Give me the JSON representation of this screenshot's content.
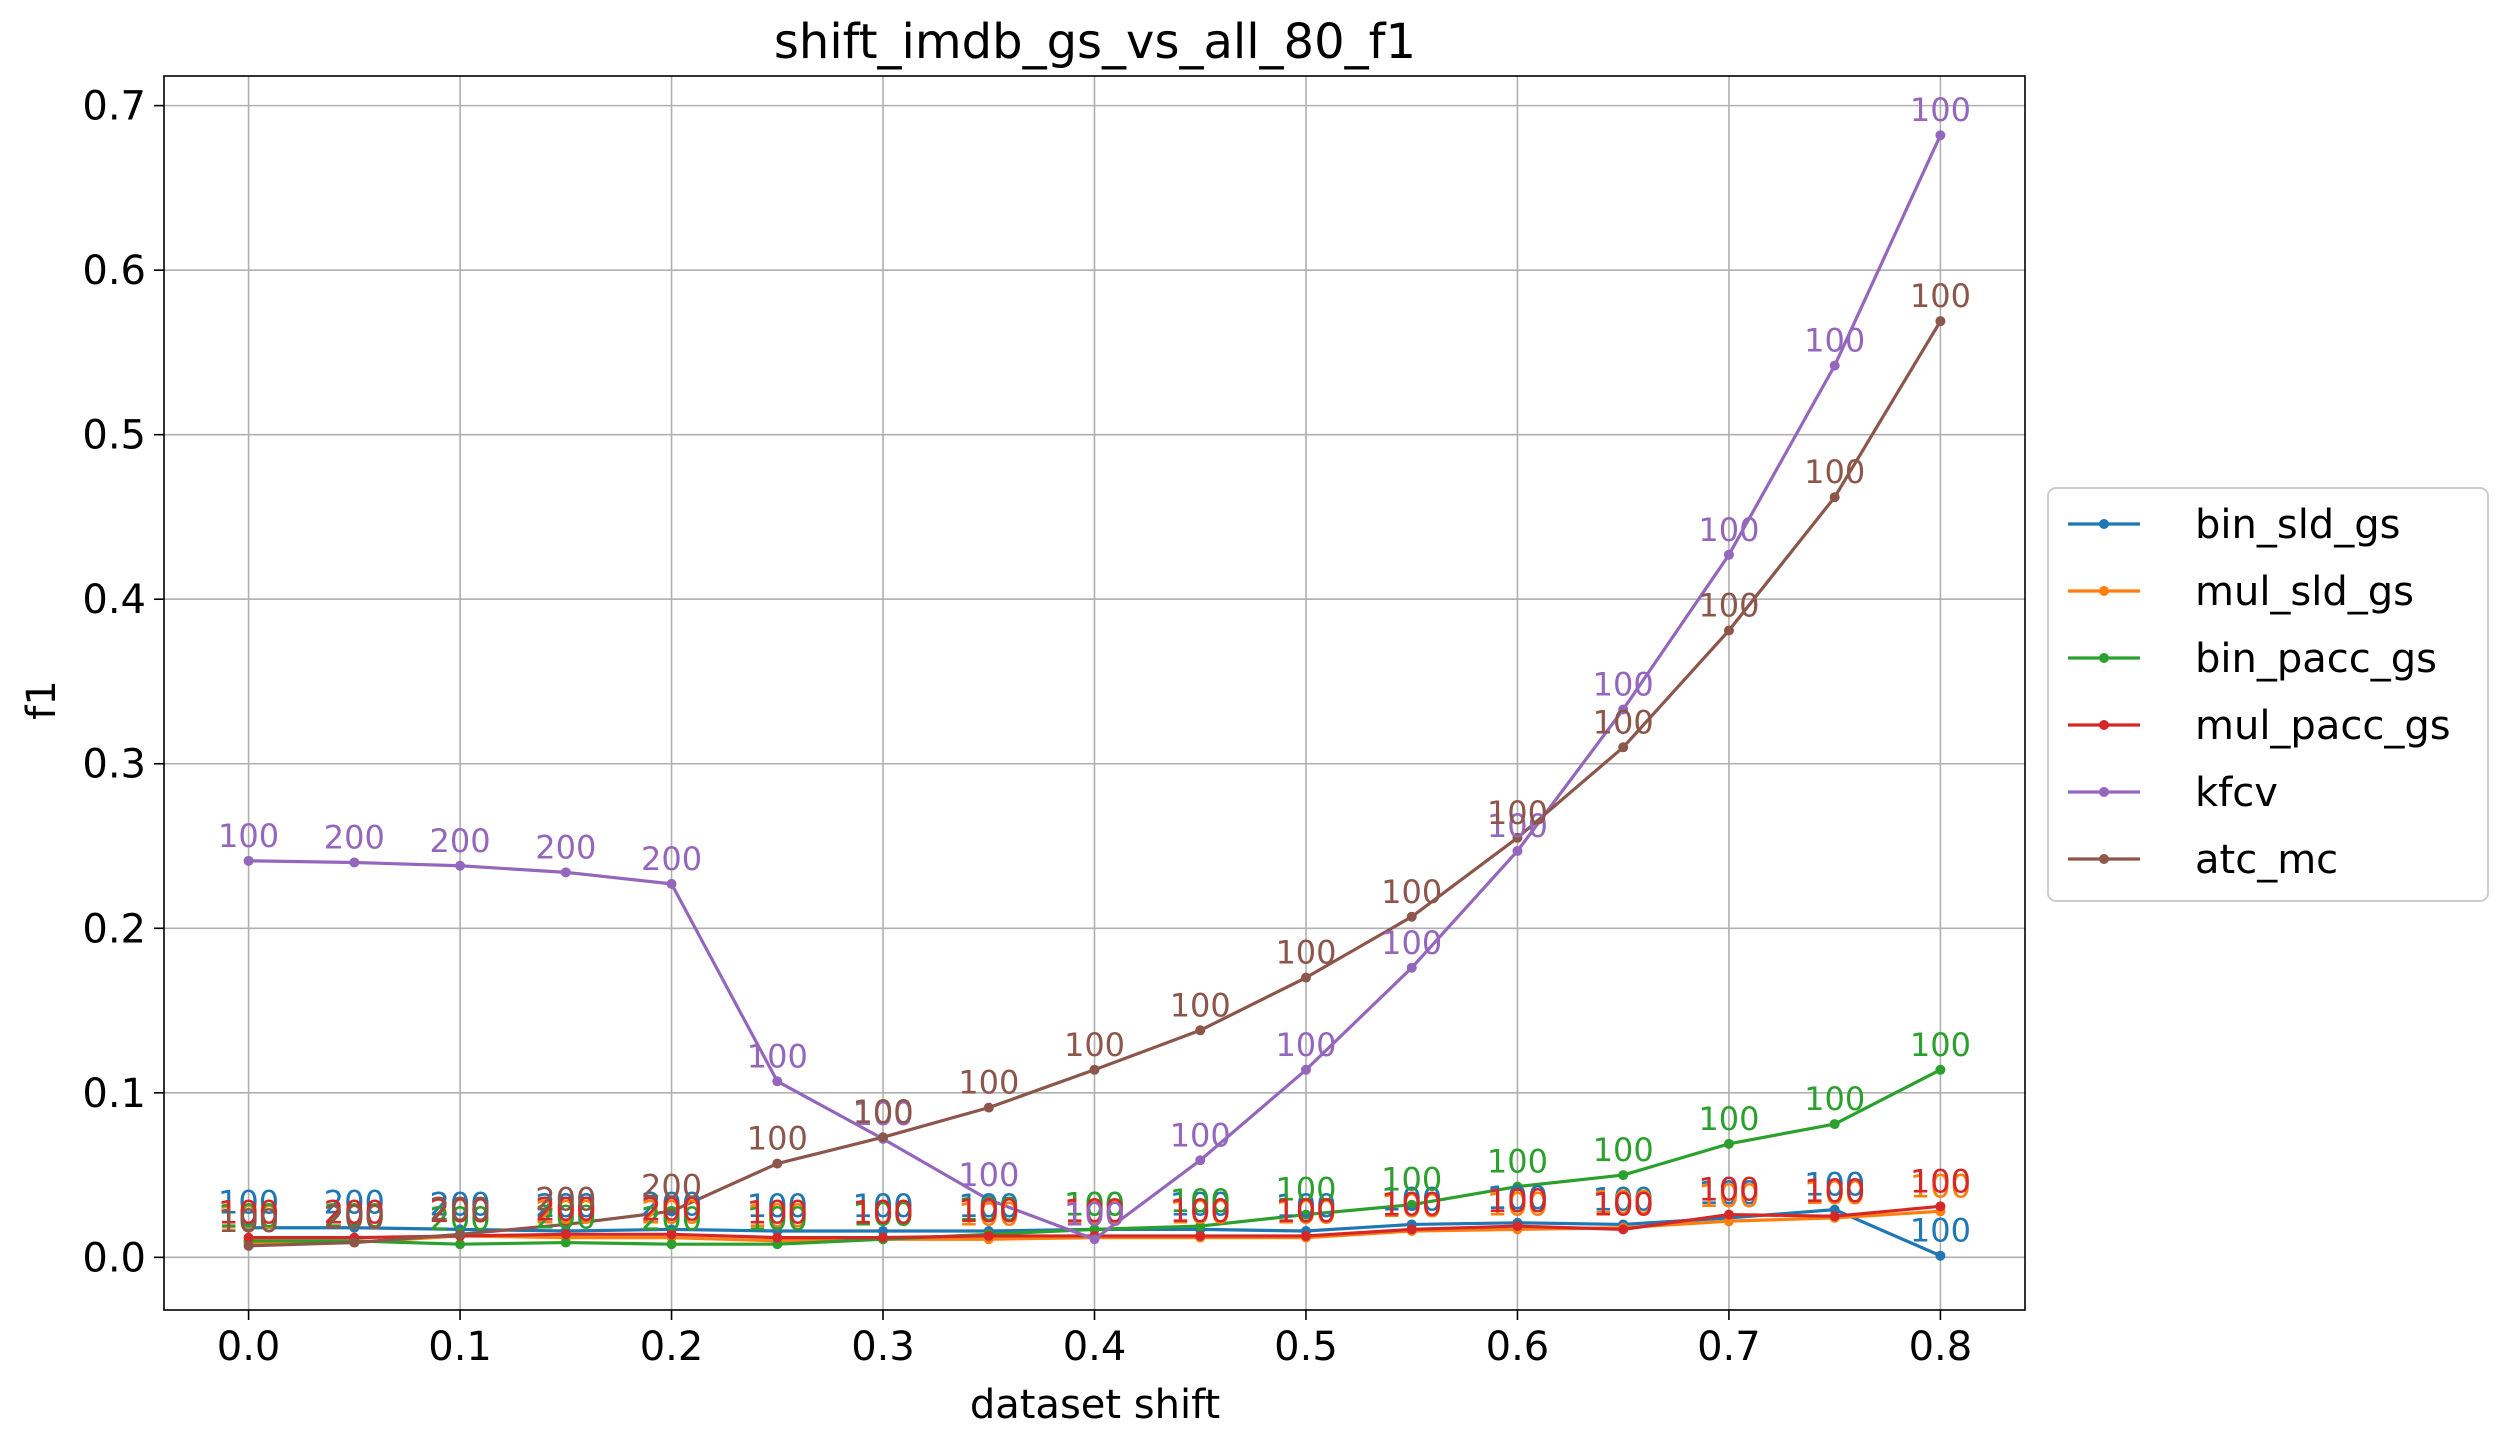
{
  "chart_data": {
    "type": "line",
    "title": "shift_imdb_gs_vs_all_80_f1",
    "xlabel": "dataset shift",
    "ylabel": "f1",
    "xlim": [
      -0.04,
      0.84
    ],
    "ylim": [
      -0.032,
      0.718
    ],
    "xticks": [
      "0.0",
      "0.1",
      "0.2",
      "0.3",
      "0.4",
      "0.5",
      "0.6",
      "0.7",
      "0.8"
    ],
    "yticks": [
      "0.0",
      "0.1",
      "0.2",
      "0.3",
      "0.4",
      "0.5",
      "0.6",
      "0.7"
    ],
    "grid": true,
    "legend_position": "center-right outside",
    "x": [
      0.0,
      0.05,
      0.1,
      0.15,
      0.2,
      0.25,
      0.3,
      0.35,
      0.4,
      0.45,
      0.5,
      0.55,
      0.6,
      0.65,
      0.7,
      0.75,
      0.8
    ],
    "series": [
      {
        "name": "bin_sld_gs",
        "color": "#1f77b4",
        "values": [
          0.018,
          0.018,
          0.017,
          0.016,
          0.017,
          0.016,
          0.016,
          0.016,
          0.017,
          0.017,
          0.016,
          0.02,
          0.021,
          0.02,
          0.024,
          0.029,
          0.001
        ],
        "labels": [
          "100",
          "200",
          "200",
          "200",
          "200",
          "100",
          "100",
          "100",
          "100",
          "100",
          "100",
          "100",
          "100",
          "100",
          "100",
          "100",
          "100"
        ]
      },
      {
        "name": "mul_sld_gs",
        "color": "#ff7f0e",
        "values": [
          0.009,
          0.009,
          0.013,
          0.012,
          0.012,
          0.01,
          0.011,
          0.011,
          0.012,
          0.012,
          0.012,
          0.016,
          0.017,
          0.018,
          0.022,
          0.024,
          0.028
        ],
        "labels": [
          "100",
          "200",
          "200",
          "200",
          "200",
          "100",
          "100",
          "100",
          "100",
          "100",
          "100",
          "100",
          "100",
          "100",
          "100",
          "100",
          "100"
        ]
      },
      {
        "name": "bin_pacc_gs",
        "color": "#2ca02c",
        "values": [
          0.01,
          0.01,
          0.008,
          0.009,
          0.008,
          0.008,
          0.011,
          0.014,
          0.017,
          0.019,
          0.026,
          0.032,
          0.043,
          0.05,
          0.069,
          0.081,
          0.114
        ],
        "labels": [
          "100",
          "200",
          "200",
          "200",
          "200",
          "100",
          "100",
          "100",
          "100",
          "100",
          "100",
          "100",
          "100",
          "100",
          "100",
          "100",
          "100"
        ]
      },
      {
        "name": "mul_pacc_gs",
        "color": "#d62728",
        "values": [
          0.012,
          0.012,
          0.013,
          0.014,
          0.014,
          0.012,
          0.012,
          0.013,
          0.013,
          0.013,
          0.013,
          0.017,
          0.019,
          0.017,
          0.026,
          0.025,
          0.031
        ],
        "labels": [
          "100",
          "200",
          "200",
          "200",
          "200",
          "100",
          "100",
          "100",
          "100",
          "100",
          "100",
          "100",
          "100",
          "100",
          "100",
          "100",
          "100"
        ]
      },
      {
        "name": "kfcv",
        "color": "#9467bd",
        "values": [
          0.241,
          0.24,
          0.238,
          0.234,
          0.227,
          0.107,
          0.072,
          0.035,
          0.011,
          0.059,
          0.114,
          0.176,
          0.247,
          0.333,
          0.427,
          0.542,
          0.682
        ],
        "labels": [
          "100",
          "200",
          "200",
          "200",
          "200",
          "100",
          "100",
          "100",
          "100",
          "100",
          "100",
          "100",
          "100",
          "100",
          "100",
          "100",
          "100"
        ]
      },
      {
        "name": "atc_mc",
        "color": "#8c564b",
        "values": [
          0.007,
          0.009,
          0.014,
          0.02,
          0.028,
          0.057,
          0.073,
          0.091,
          0.114,
          0.138,
          0.17,
          0.207,
          0.255,
          0.31,
          0.381,
          0.462,
          0.569
        ],
        "labels": [
          "100",
          "200",
          "200",
          "200",
          "200",
          "100",
          "100",
          "100",
          "100",
          "100",
          "100",
          "100",
          "100",
          "100",
          "100",
          "100",
          "100"
        ]
      }
    ]
  }
}
